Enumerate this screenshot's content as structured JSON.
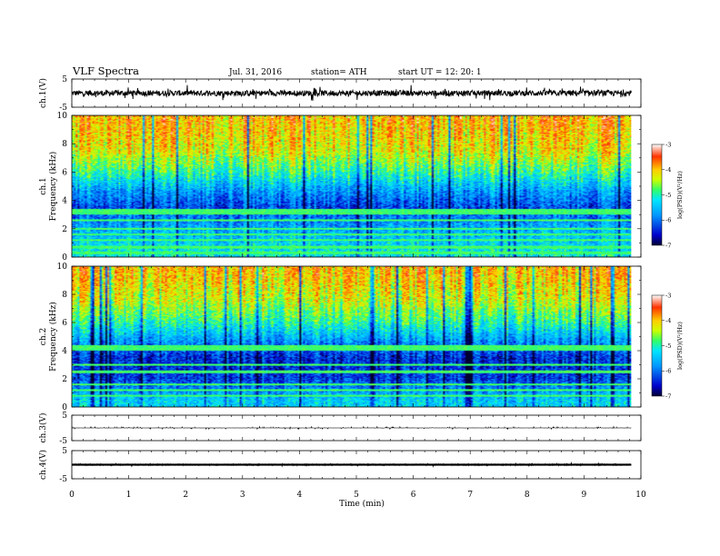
{
  "header": {
    "title": "VLF  Spectra",
    "date": "Jul.  31,  2016",
    "station": "station= ATH",
    "start": "start  UT  =    12: 20: 1"
  },
  "chart_data": {
    "type": "heatmap",
    "xlabel": "Time  (min)",
    "xlim": [
      0,
      10
    ],
    "x_ticks": [
      "0",
      "1",
      "2",
      "3",
      "4",
      "5",
      "6",
      "7",
      "8",
      "9",
      "10"
    ],
    "data_end_min": 9.83,
    "panels": [
      {
        "id": "ch1-waveform",
        "kind": "waveform",
        "ylabel": "ch.1(V)",
        "ylim": [
          -5,
          5
        ],
        "y_ticks": [
          "5",
          "-5"
        ],
        "baseline": 0,
        "noise_amplitude": 1.0,
        "spikes_amplitude": 2.2
      },
      {
        "id": "ch1-spectrogram",
        "kind": "spectrogram",
        "ylabel_line1": "ch.1",
        "ylabel_line2": "Frequency  (kHz)",
        "ylim": [
          0,
          10
        ],
        "y_ticks": [
          "0",
          "2",
          "4",
          "6",
          "8",
          "10"
        ],
        "log_psd_levels": [
          {
            "f_khz": 0.5,
            "level": -5.2
          },
          {
            "f_khz": 2,
            "level": -5.6
          },
          {
            "f_khz": 3.5,
            "level": -6.2
          },
          {
            "f_khz": 4.5,
            "level": -5.8
          },
          {
            "f_khz": 6,
            "level": -4.9
          },
          {
            "f_khz": 7.5,
            "level": -4.2
          },
          {
            "f_khz": 9.5,
            "level": -3.9
          }
        ],
        "narrowband_lines_khz": [
          0.3,
          0.7,
          1.2,
          1.6,
          2.0,
          2.6,
          3.1,
          3.3
        ],
        "colorbar": {
          "range": [
            -7,
            -3
          ],
          "ticks": [
            "-3",
            "-4",
            "-5",
            "-6",
            "-7"
          ],
          "label": "log(PSD)(V²/Hz)"
        }
      },
      {
        "id": "ch2-spectrogram",
        "kind": "spectrogram",
        "ylabel_line1": "ch.2",
        "ylabel_line2": "Frequency  (kHz)",
        "ylim": [
          0,
          10
        ],
        "y_ticks": [
          "0",
          "2",
          "4",
          "6",
          "8",
          "10"
        ],
        "log_psd_levels": [
          {
            "f_khz": 0.5,
            "level": -5.4
          },
          {
            "f_khz": 2,
            "level": -6.3
          },
          {
            "f_khz": 3.5,
            "level": -6.4
          },
          {
            "f_khz": 4.5,
            "level": -5.9
          },
          {
            "f_khz": 6,
            "level": -5.0
          },
          {
            "f_khz": 7.5,
            "level": -4.4
          },
          {
            "f_khz": 9.5,
            "level": -4.0
          }
        ],
        "narrowband_lines_khz": [
          0.8,
          1.2,
          1.6,
          2.5,
          3.0,
          4.1,
          4.3
        ],
        "colorbar": {
          "range": [
            -7,
            -3
          ],
          "ticks": [
            "-3",
            "-4",
            "-5",
            "-6",
            "-7"
          ],
          "label": "log(PSD)(V²/Hz)"
        }
      },
      {
        "id": "ch3-waveform",
        "kind": "waveform",
        "ylabel": "ch.3(V)",
        "ylim": [
          -5,
          5
        ],
        "y_ticks": [
          "5",
          "-5"
        ],
        "baseline": 0,
        "noise_amplitude": 0.05,
        "spikes_amplitude": 0.5
      },
      {
        "id": "ch4-waveform",
        "kind": "waveform",
        "ylabel": "ch.4(V)",
        "ylim": [
          -5,
          5
        ],
        "y_ticks": [
          "5",
          "-5"
        ],
        "baseline": 0,
        "noise_amplitude": 0.25,
        "spikes_amplitude": 0.4
      }
    ]
  },
  "colors": {
    "scale": [
      "#000033",
      "#0000cc",
      "#0099ff",
      "#00e6ff",
      "#33ff66",
      "#ccff00",
      "#ffcc00",
      "#ff3300",
      "#ffffff"
    ],
    "axis": "#000000",
    "trace": "#000000"
  }
}
